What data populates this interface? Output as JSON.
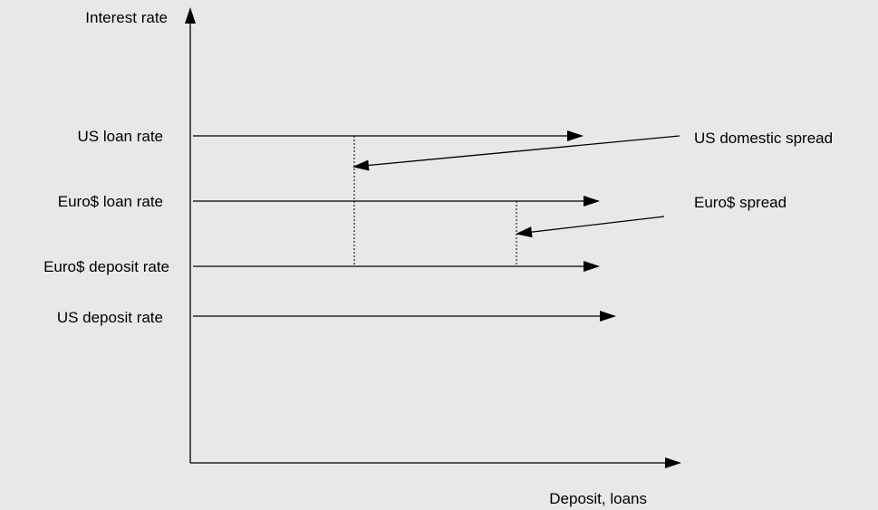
{
  "diagram": {
    "y_axis_label": "Interest rate",
    "x_axis_label": "Deposit, loans",
    "rates": {
      "us_loan": "US loan rate",
      "euro_loan": "Euro$ loan rate",
      "euro_deposit": "Euro$ deposit rate",
      "us_deposit": "US deposit rate"
    },
    "spreads": {
      "us_domestic": "US domestic spread",
      "euro": "Euro$ spread"
    },
    "colors": {
      "background": "#e8e8e8",
      "line": "#000000"
    }
  }
}
